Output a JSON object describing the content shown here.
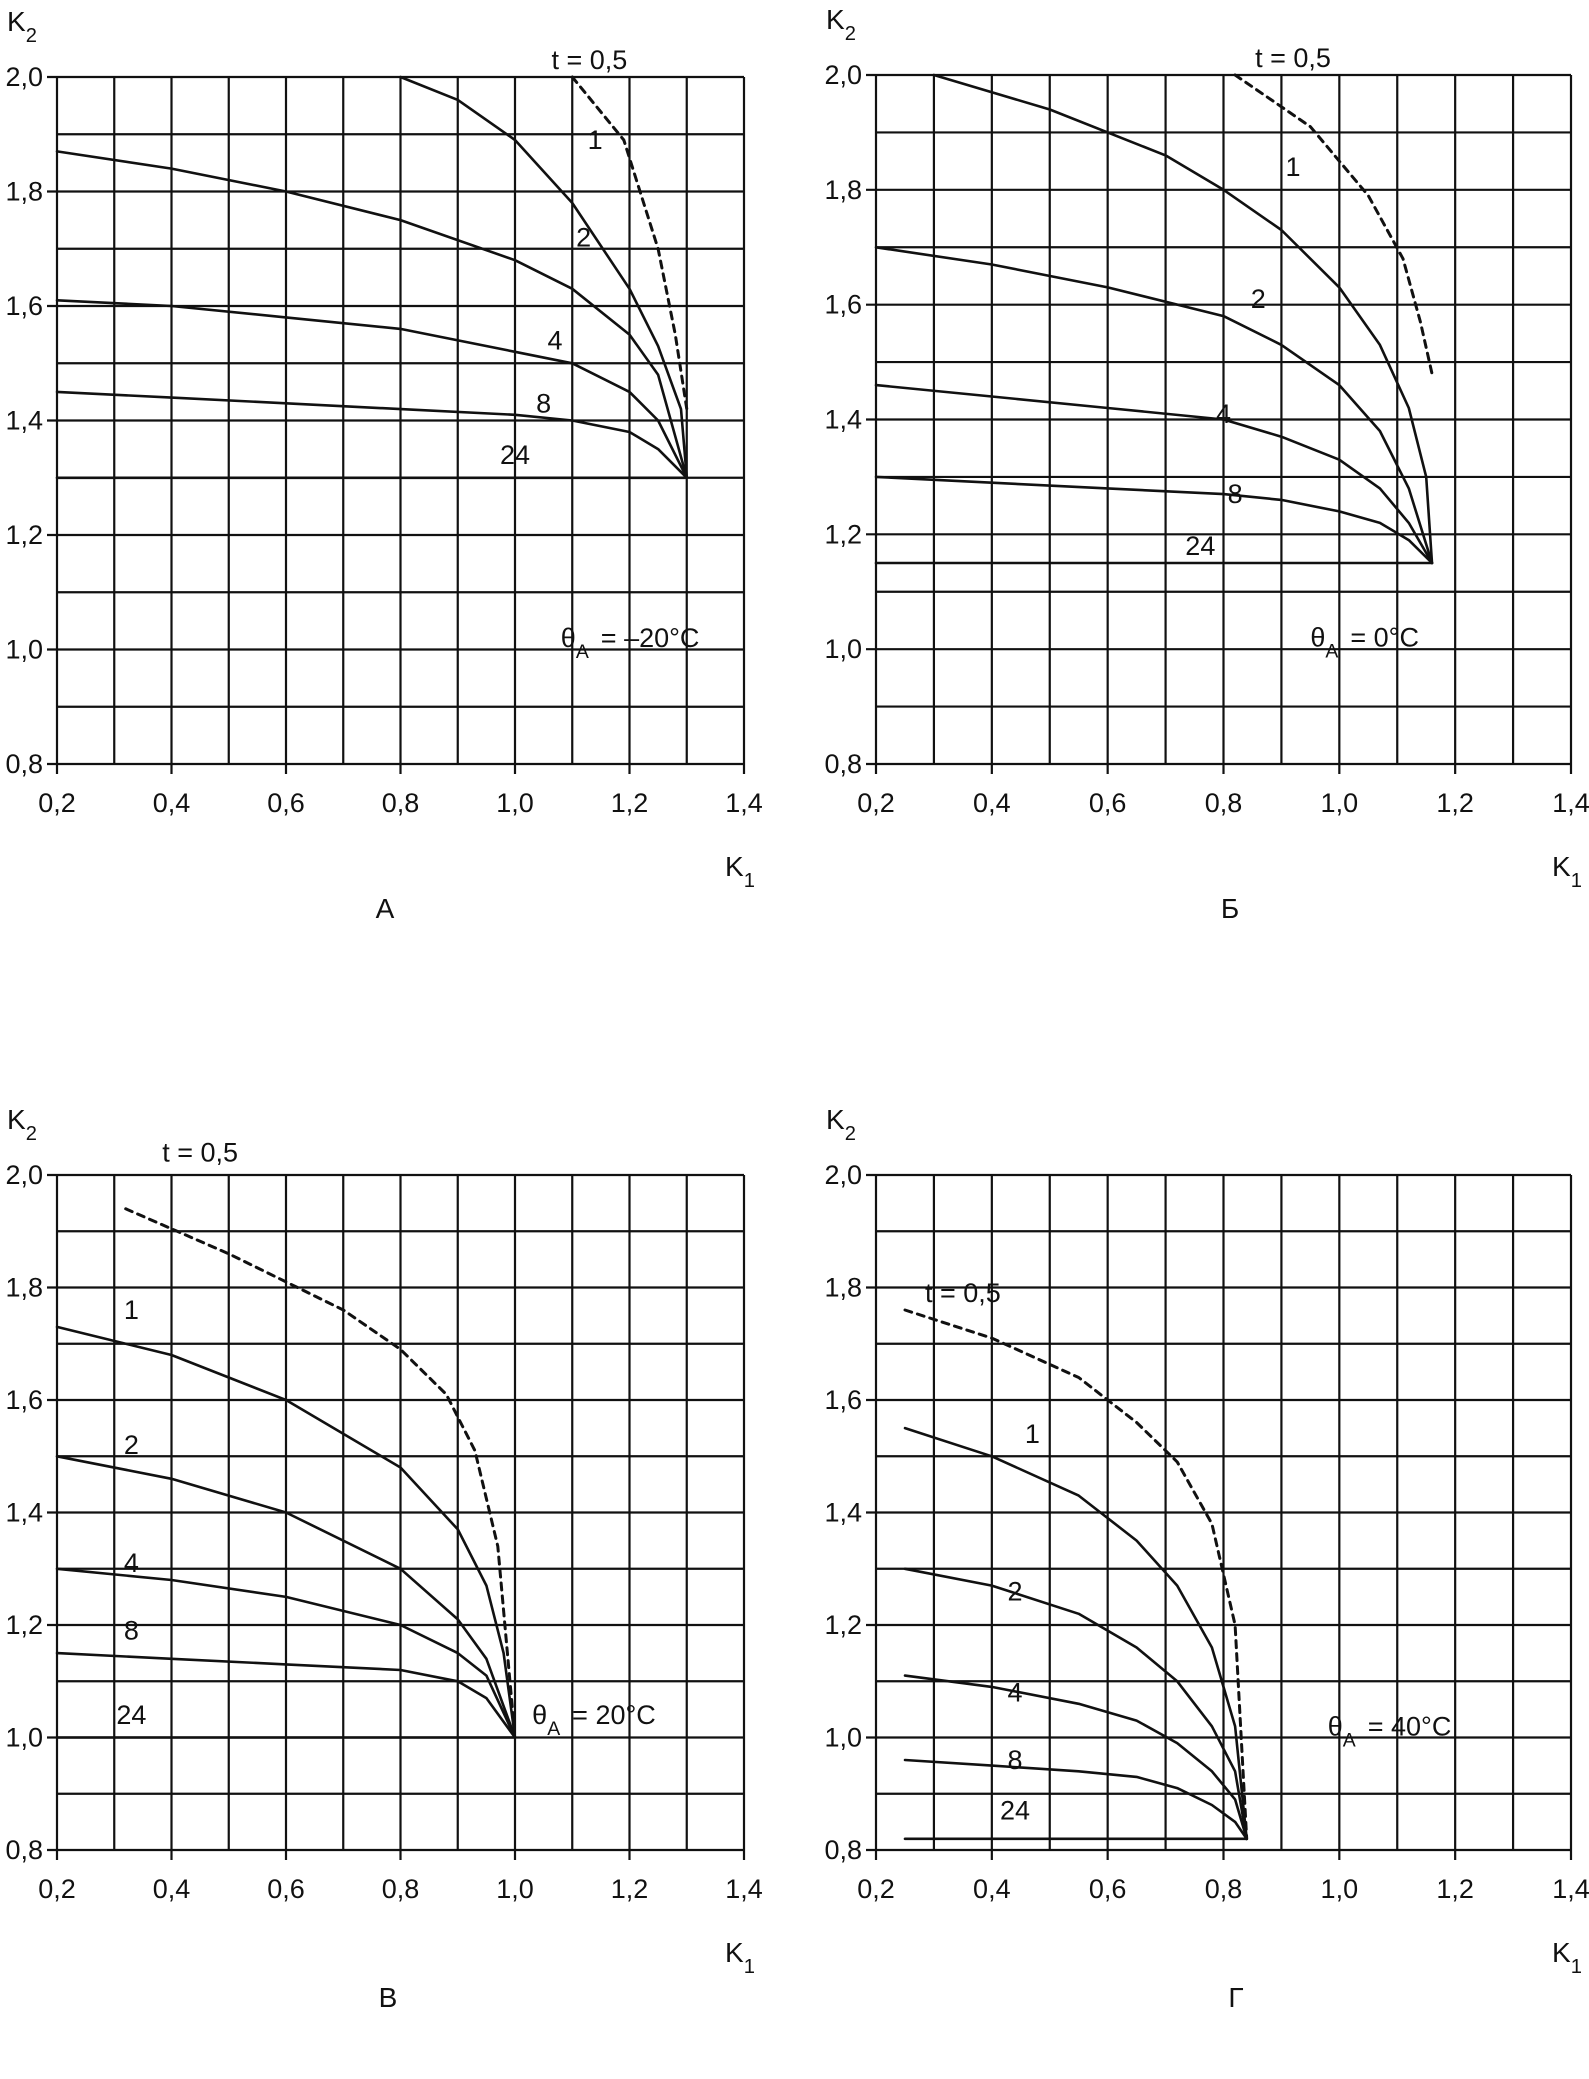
{
  "figure": {
    "panels": [
      "A",
      "Б",
      "В",
      "Г"
    ]
  },
  "chart_data": [
    {
      "type": "line",
      "panel_label": "А",
      "xlabel": "K1",
      "ylabel": "K2",
      "xlim": [
        0.2,
        1.4
      ],
      "ylim": [
        0.8,
        2.0
      ],
      "xticks": [
        "0,2",
        "0,4",
        "0,6",
        "0,8",
        "1,0",
        "1,2",
        "1,4"
      ],
      "yticks": [
        "0,8",
        "1,0",
        "1,2",
        "1,4",
        "1,6",
        "1,8",
        "2,0"
      ],
      "grid": true,
      "annotation": "θA = –20°C",
      "series": [
        {
          "name": "t = 0,5",
          "x": [
            1.1,
            1.19,
            1.25,
            1.28,
            1.3
          ],
          "y": [
            2.0,
            1.89,
            1.7,
            1.55,
            1.42
          ]
        },
        {
          "name": "1",
          "x": [
            0.8,
            0.9,
            1.0,
            1.1,
            1.2,
            1.25,
            1.29,
            1.3
          ],
          "y": [
            2.0,
            1.96,
            1.89,
            1.78,
            1.63,
            1.53,
            1.42,
            1.3
          ]
        },
        {
          "name": "2",
          "x": [
            0.2,
            0.4,
            0.6,
            0.8,
            1.0,
            1.1,
            1.2,
            1.25,
            1.3
          ],
          "y": [
            1.87,
            1.84,
            1.8,
            1.75,
            1.68,
            1.63,
            1.55,
            1.48,
            1.3
          ]
        },
        {
          "name": "4",
          "x": [
            0.2,
            0.4,
            0.6,
            0.8,
            1.0,
            1.1,
            1.2,
            1.25,
            1.3
          ],
          "y": [
            1.61,
            1.6,
            1.58,
            1.56,
            1.52,
            1.5,
            1.45,
            1.4,
            1.3
          ]
        },
        {
          "name": "8",
          "x": [
            0.2,
            0.4,
            0.6,
            0.8,
            1.0,
            1.1,
            1.2,
            1.25,
            1.3
          ],
          "y": [
            1.45,
            1.44,
            1.43,
            1.42,
            1.41,
            1.4,
            1.38,
            1.35,
            1.3
          ]
        },
        {
          "name": "24",
          "x": [
            0.2,
            1.3
          ],
          "y": [
            1.3,
            1.3
          ]
        }
      ]
    },
    {
      "type": "line",
      "panel_label": "Б",
      "xlabel": "K1",
      "ylabel": "K2",
      "xlim": [
        0.2,
        1.4
      ],
      "ylim": [
        0.8,
        2.0
      ],
      "xticks": [
        "0,2",
        "0,4",
        "0,6",
        "0,8",
        "1,0",
        "1,2",
        "1,4"
      ],
      "yticks": [
        "0,8",
        "1,0",
        "1,2",
        "1,4",
        "1,6",
        "1,8",
        "2,0"
      ],
      "grid": true,
      "annotation": "θA = 0°C",
      "series": [
        {
          "name": "t = 0,5",
          "x": [
            0.82,
            0.95,
            1.05,
            1.11,
            1.14,
            1.16
          ],
          "y": [
            2.0,
            1.91,
            1.79,
            1.68,
            1.57,
            1.48
          ]
        },
        {
          "name": "1",
          "x": [
            0.3,
            0.5,
            0.7,
            0.8,
            0.9,
            1.0,
            1.07,
            1.12,
            1.15,
            1.16
          ],
          "y": [
            2.0,
            1.94,
            1.86,
            1.8,
            1.73,
            1.63,
            1.53,
            1.42,
            1.3,
            1.15
          ]
        },
        {
          "name": "2",
          "x": [
            0.2,
            0.4,
            0.6,
            0.8,
            0.9,
            1.0,
            1.07,
            1.12,
            1.16
          ],
          "y": [
            1.7,
            1.67,
            1.63,
            1.58,
            1.53,
            1.46,
            1.38,
            1.28,
            1.15
          ]
        },
        {
          "name": "4",
          "x": [
            0.2,
            0.4,
            0.6,
            0.8,
            0.9,
            1.0,
            1.07,
            1.12,
            1.16
          ],
          "y": [
            1.46,
            1.44,
            1.42,
            1.4,
            1.37,
            1.33,
            1.28,
            1.22,
            1.15
          ]
        },
        {
          "name": "8",
          "x": [
            0.2,
            0.4,
            0.6,
            0.8,
            0.9,
            1.0,
            1.07,
            1.12,
            1.16
          ],
          "y": [
            1.3,
            1.29,
            1.28,
            1.27,
            1.26,
            1.24,
            1.22,
            1.19,
            1.15
          ]
        },
        {
          "name": "24",
          "x": [
            0.2,
            1.16
          ],
          "y": [
            1.15,
            1.15
          ]
        }
      ]
    },
    {
      "type": "line",
      "panel_label": "В",
      "xlabel": "K1",
      "ylabel": "K2",
      "xlim": [
        0.2,
        1.4
      ],
      "ylim": [
        0.8,
        2.0
      ],
      "xticks": [
        "0,2",
        "0,4",
        "0,6",
        "0,8",
        "1,0",
        "1,2",
        "1,4"
      ],
      "yticks": [
        "0,8",
        "1,0",
        "1,2",
        "1,4",
        "1,6",
        "1,8",
        "2,0"
      ],
      "grid": true,
      "annotation": "θA = 20°C",
      "series": [
        {
          "name": "t = 0,5",
          "x": [
            0.32,
            0.5,
            0.7,
            0.8,
            0.88,
            0.93,
            0.97,
            1.0
          ],
          "y": [
            1.94,
            1.86,
            1.76,
            1.69,
            1.61,
            1.51,
            1.34,
            1.0
          ]
        },
        {
          "name": "1",
          "x": [
            0.2,
            0.4,
            0.6,
            0.8,
            0.9,
            0.95,
            0.98,
            1.0
          ],
          "y": [
            1.73,
            1.68,
            1.6,
            1.48,
            1.37,
            1.27,
            1.15,
            1.0
          ]
        },
        {
          "name": "2",
          "x": [
            0.2,
            0.4,
            0.6,
            0.8,
            0.9,
            0.95,
            1.0
          ],
          "y": [
            1.5,
            1.46,
            1.4,
            1.3,
            1.21,
            1.14,
            1.0
          ]
        },
        {
          "name": "4",
          "x": [
            0.2,
            0.4,
            0.6,
            0.8,
            0.9,
            0.95,
            1.0
          ],
          "y": [
            1.3,
            1.28,
            1.25,
            1.2,
            1.15,
            1.11,
            1.0
          ]
        },
        {
          "name": "8",
          "x": [
            0.2,
            0.4,
            0.6,
            0.8,
            0.9,
            0.95,
            1.0
          ],
          "y": [
            1.15,
            1.14,
            1.13,
            1.12,
            1.1,
            1.07,
            1.0
          ]
        },
        {
          "name": "24",
          "x": [
            0.2,
            1.0
          ],
          "y": [
            1.0,
            1.0
          ]
        }
      ]
    },
    {
      "type": "line",
      "panel_label": "Г",
      "xlabel": "K1",
      "ylabel": "K2",
      "xlim": [
        0.2,
        1.4
      ],
      "ylim": [
        0.8,
        2.0
      ],
      "xticks": [
        "0,2",
        "0,4",
        "0,6",
        "0,8",
        "1,0",
        "1,2",
        "1,4"
      ],
      "yticks": [
        "0,8",
        "1,0",
        "1,2",
        "1,4",
        "1,6",
        "1,8",
        "2,0"
      ],
      "grid": true,
      "annotation": "θA = 40°C",
      "series": [
        {
          "name": "t = 0,5",
          "x": [
            0.25,
            0.4,
            0.55,
            0.65,
            0.72,
            0.78,
            0.82,
            0.84
          ],
          "y": [
            1.76,
            1.71,
            1.64,
            1.56,
            1.49,
            1.38,
            1.2,
            0.82
          ]
        },
        {
          "name": "1",
          "x": [
            0.25,
            0.4,
            0.55,
            0.65,
            0.72,
            0.78,
            0.82,
            0.84
          ],
          "y": [
            1.55,
            1.5,
            1.43,
            1.35,
            1.27,
            1.16,
            1.02,
            0.82
          ]
        },
        {
          "name": "2",
          "x": [
            0.25,
            0.4,
            0.55,
            0.65,
            0.72,
            0.78,
            0.82,
            0.84
          ],
          "y": [
            1.3,
            1.27,
            1.22,
            1.16,
            1.1,
            1.02,
            0.94,
            0.82
          ]
        },
        {
          "name": "4",
          "x": [
            0.25,
            0.4,
            0.55,
            0.65,
            0.72,
            0.78,
            0.82,
            0.84
          ],
          "y": [
            1.11,
            1.09,
            1.06,
            1.03,
            0.99,
            0.94,
            0.89,
            0.82
          ]
        },
        {
          "name": "8",
          "x": [
            0.25,
            0.4,
            0.55,
            0.65,
            0.72,
            0.78,
            0.82,
            0.84
          ],
          "y": [
            0.96,
            0.95,
            0.94,
            0.93,
            0.91,
            0.88,
            0.85,
            0.82
          ]
        },
        {
          "name": "24",
          "x": [
            0.25,
            0.84
          ],
          "y": [
            0.82,
            0.82
          ]
        }
      ]
    }
  ]
}
